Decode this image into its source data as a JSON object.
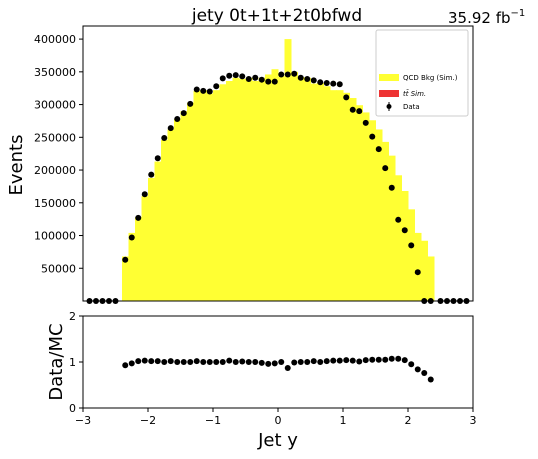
{
  "header": {
    "title": "jety  0t+1t+2t0bfwd",
    "lumi_value": "35.92 fb",
    "lumi_exp": "−1"
  },
  "chart_data": [
    {
      "type": "histogram-with-points",
      "panel": "main",
      "ylabel": "Events",
      "xlim": [
        -3,
        3
      ],
      "ylim": [
        0,
        420000
      ],
      "yticks": [
        50000,
        100000,
        150000,
        200000,
        250000,
        300000,
        350000,
        400000
      ],
      "ytick_labels": [
        "50000",
        "100000",
        "150000",
        "200000",
        "250000",
        "300000",
        "350000",
        "400000"
      ],
      "bin_edges": [
        -2.4,
        -2.3,
        -2.2,
        -2.1,
        -2.0,
        -1.9,
        -1.8,
        -1.7,
        -1.6,
        -1.5,
        -1.4,
        -1.3,
        -1.2,
        -1.1,
        -1.0,
        -0.9,
        -0.8,
        -0.7,
        -0.6,
        -0.5,
        -0.4,
        -0.3,
        -0.2,
        -0.1,
        0.0,
        0.1,
        0.2,
        0.3,
        0.4,
        0.5,
        0.6,
        0.7,
        0.8,
        0.9,
        1.0,
        1.1,
        1.2,
        1.3,
        1.4,
        1.5,
        1.6,
        1.7,
        1.8,
        1.9,
        2.0,
        2.1,
        2.2,
        2.3,
        2.4
      ],
      "series": [
        {
          "name": "QCD Bkg (Sim.)",
          "kind": "filled-histogram",
          "color": "#ffff33",
          "values": [
            68000,
            104000,
            128000,
            160000,
            188000,
            213000,
            246000,
            262000,
            278000,
            290000,
            303000,
            321000,
            322000,
            317000,
            322000,
            331000,
            336000,
            341000,
            339000,
            341000,
            336000,
            341000,
            346000,
            354000,
            343000,
            400000,
            350000,
            342000,
            341000,
            332000,
            333000,
            328000,
            322000,
            322000,
            318000,
            310000,
            299000,
            288000,
            276000,
            262000,
            243000,
            222000,
            192000,
            168000,
            140000,
            104000,
            92000,
            68000
          ]
        },
        {
          "name": "tt̄ Sim.",
          "kind": "filled-histogram",
          "color": "#ee3333",
          "values": []
        },
        {
          "name": "Data",
          "kind": "points",
          "color": "#000000",
          "x": [
            -2.9,
            -2.8,
            -2.7,
            -2.6,
            -2.5,
            -2.35,
            -2.25,
            -2.15,
            -2.05,
            -1.95,
            -1.85,
            -1.75,
            -1.65,
            -1.55,
            -1.45,
            -1.35,
            -1.25,
            -1.15,
            -1.05,
            -0.95,
            -0.85,
            -0.75,
            -0.65,
            -0.55,
            -0.45,
            -0.35,
            -0.25,
            -0.15,
            -0.05,
            0.05,
            0.15,
            0.25,
            0.35,
            0.45,
            0.55,
            0.65,
            0.75,
            0.85,
            0.95,
            1.05,
            1.15,
            1.25,
            1.35,
            1.45,
            1.55,
            1.65,
            1.75,
            1.85,
            1.95,
            2.05,
            2.15,
            2.25,
            2.35,
            2.5,
            2.6,
            2.7,
            2.8,
            2.9
          ],
          "y": [
            0,
            0,
            0,
            0,
            0,
            63000,
            97000,
            127000,
            163000,
            193000,
            218000,
            249000,
            264000,
            278000,
            287000,
            301000,
            323000,
            321000,
            320000,
            328000,
            340000,
            344000,
            345000,
            343000,
            339000,
            341000,
            338000,
            335000,
            335000,
            346000,
            346000,
            347000,
            341000,
            339000,
            337000,
            334000,
            333000,
            332000,
            331000,
            311000,
            292000,
            290000,
            272000,
            251000,
            232000,
            203000,
            173000,
            124000,
            108000,
            85000,
            44000,
            0,
            0,
            0,
            0,
            0,
            0,
            0
          ]
        }
      ],
      "legend_position": "top-right"
    },
    {
      "type": "scatter",
      "panel": "ratio",
      "xlabel": "Jet y",
      "ylabel": "Data/MC",
      "xlim": [
        -3,
        3
      ],
      "ylim": [
        0,
        2
      ],
      "xticks": [
        -3,
        -2,
        -1,
        0,
        1,
        2,
        3
      ],
      "xtick_labels": [
        "−3",
        "−2",
        "−1",
        "0",
        "1",
        "2",
        "3"
      ],
      "yticks": [
        0,
        1,
        2
      ],
      "ytick_labels": [
        "0",
        "1",
        "2"
      ],
      "x": [
        -2.35,
        -2.25,
        -2.15,
        -2.05,
        -1.95,
        -1.85,
        -1.75,
        -1.65,
        -1.55,
        -1.45,
        -1.35,
        -1.25,
        -1.15,
        -1.05,
        -0.95,
        -0.85,
        -0.75,
        -0.65,
        -0.55,
        -0.45,
        -0.35,
        -0.25,
        -0.15,
        -0.05,
        0.05,
        0.15,
        0.25,
        0.35,
        0.45,
        0.55,
        0.65,
        0.75,
        0.85,
        0.95,
        1.05,
        1.15,
        1.25,
        1.35,
        1.45,
        1.55,
        1.65,
        1.75,
        1.85,
        1.95,
        2.05,
        2.15,
        2.25,
        2.35
      ],
      "y": [
        0.93,
        0.97,
        1.02,
        1.03,
        1.02,
        1.02,
        1.0,
        1.02,
        1.0,
        1.0,
        1.0,
        1.02,
        1.0,
        1.0,
        1.0,
        1.0,
        1.03,
        1.0,
        1.01,
        1.0,
        1.0,
        0.98,
        0.96,
        0.97,
        1.0,
        0.87,
        0.99,
        1.0,
        1.0,
        1.02,
        1.0,
        1.02,
        1.03,
        1.03,
        1.04,
        1.03,
        1.01,
        1.04,
        1.05,
        1.05,
        1.05,
        1.07,
        1.07,
        1.04,
        0.95,
        0.84,
        0.76,
        0.62
      ]
    }
  ]
}
